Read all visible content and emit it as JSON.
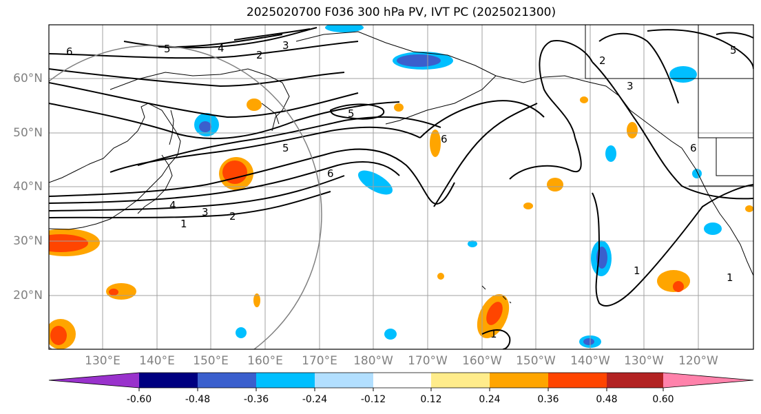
{
  "title": "2025020700 F036 300 hPa PV, IVT PC (2025021300)",
  "map": {
    "lat_labels": [
      "60°N",
      "50°N",
      "40°N",
      "30°N",
      "20°N"
    ],
    "lon_labels": [
      "130°E",
      "140°E",
      "150°E",
      "160°E",
      "170°E",
      "180°W",
      "170°W",
      "160°W",
      "150°W",
      "140°W",
      "130°W",
      "120°W"
    ],
    "contour_labels": [
      "1",
      "2",
      "3",
      "4",
      "5",
      "6",
      "2",
      "3",
      "4",
      "5",
      "6",
      "5",
      "6",
      "1",
      "1",
      "1",
      "2",
      "3",
      "6",
      "5"
    ]
  },
  "colorbar": {
    "ticks": [
      "-0.60",
      "-0.48",
      "-0.36",
      "-0.24",
      "-0.12",
      "0.12",
      "0.24",
      "0.36",
      "0.48",
      "0.60"
    ],
    "colors": [
      "#9932CC",
      "#000080",
      "#3A5FCD",
      "#00BFFF",
      "#B2DFFF",
      "#FFFFFF",
      "#FFEC8B",
      "#FFA500",
      "#FF4500",
      "#B22222",
      "#FF82AB"
    ]
  },
  "colors": {
    "frame": "#000000",
    "grid": "#A0A0A0",
    "circle": "#808080"
  }
}
